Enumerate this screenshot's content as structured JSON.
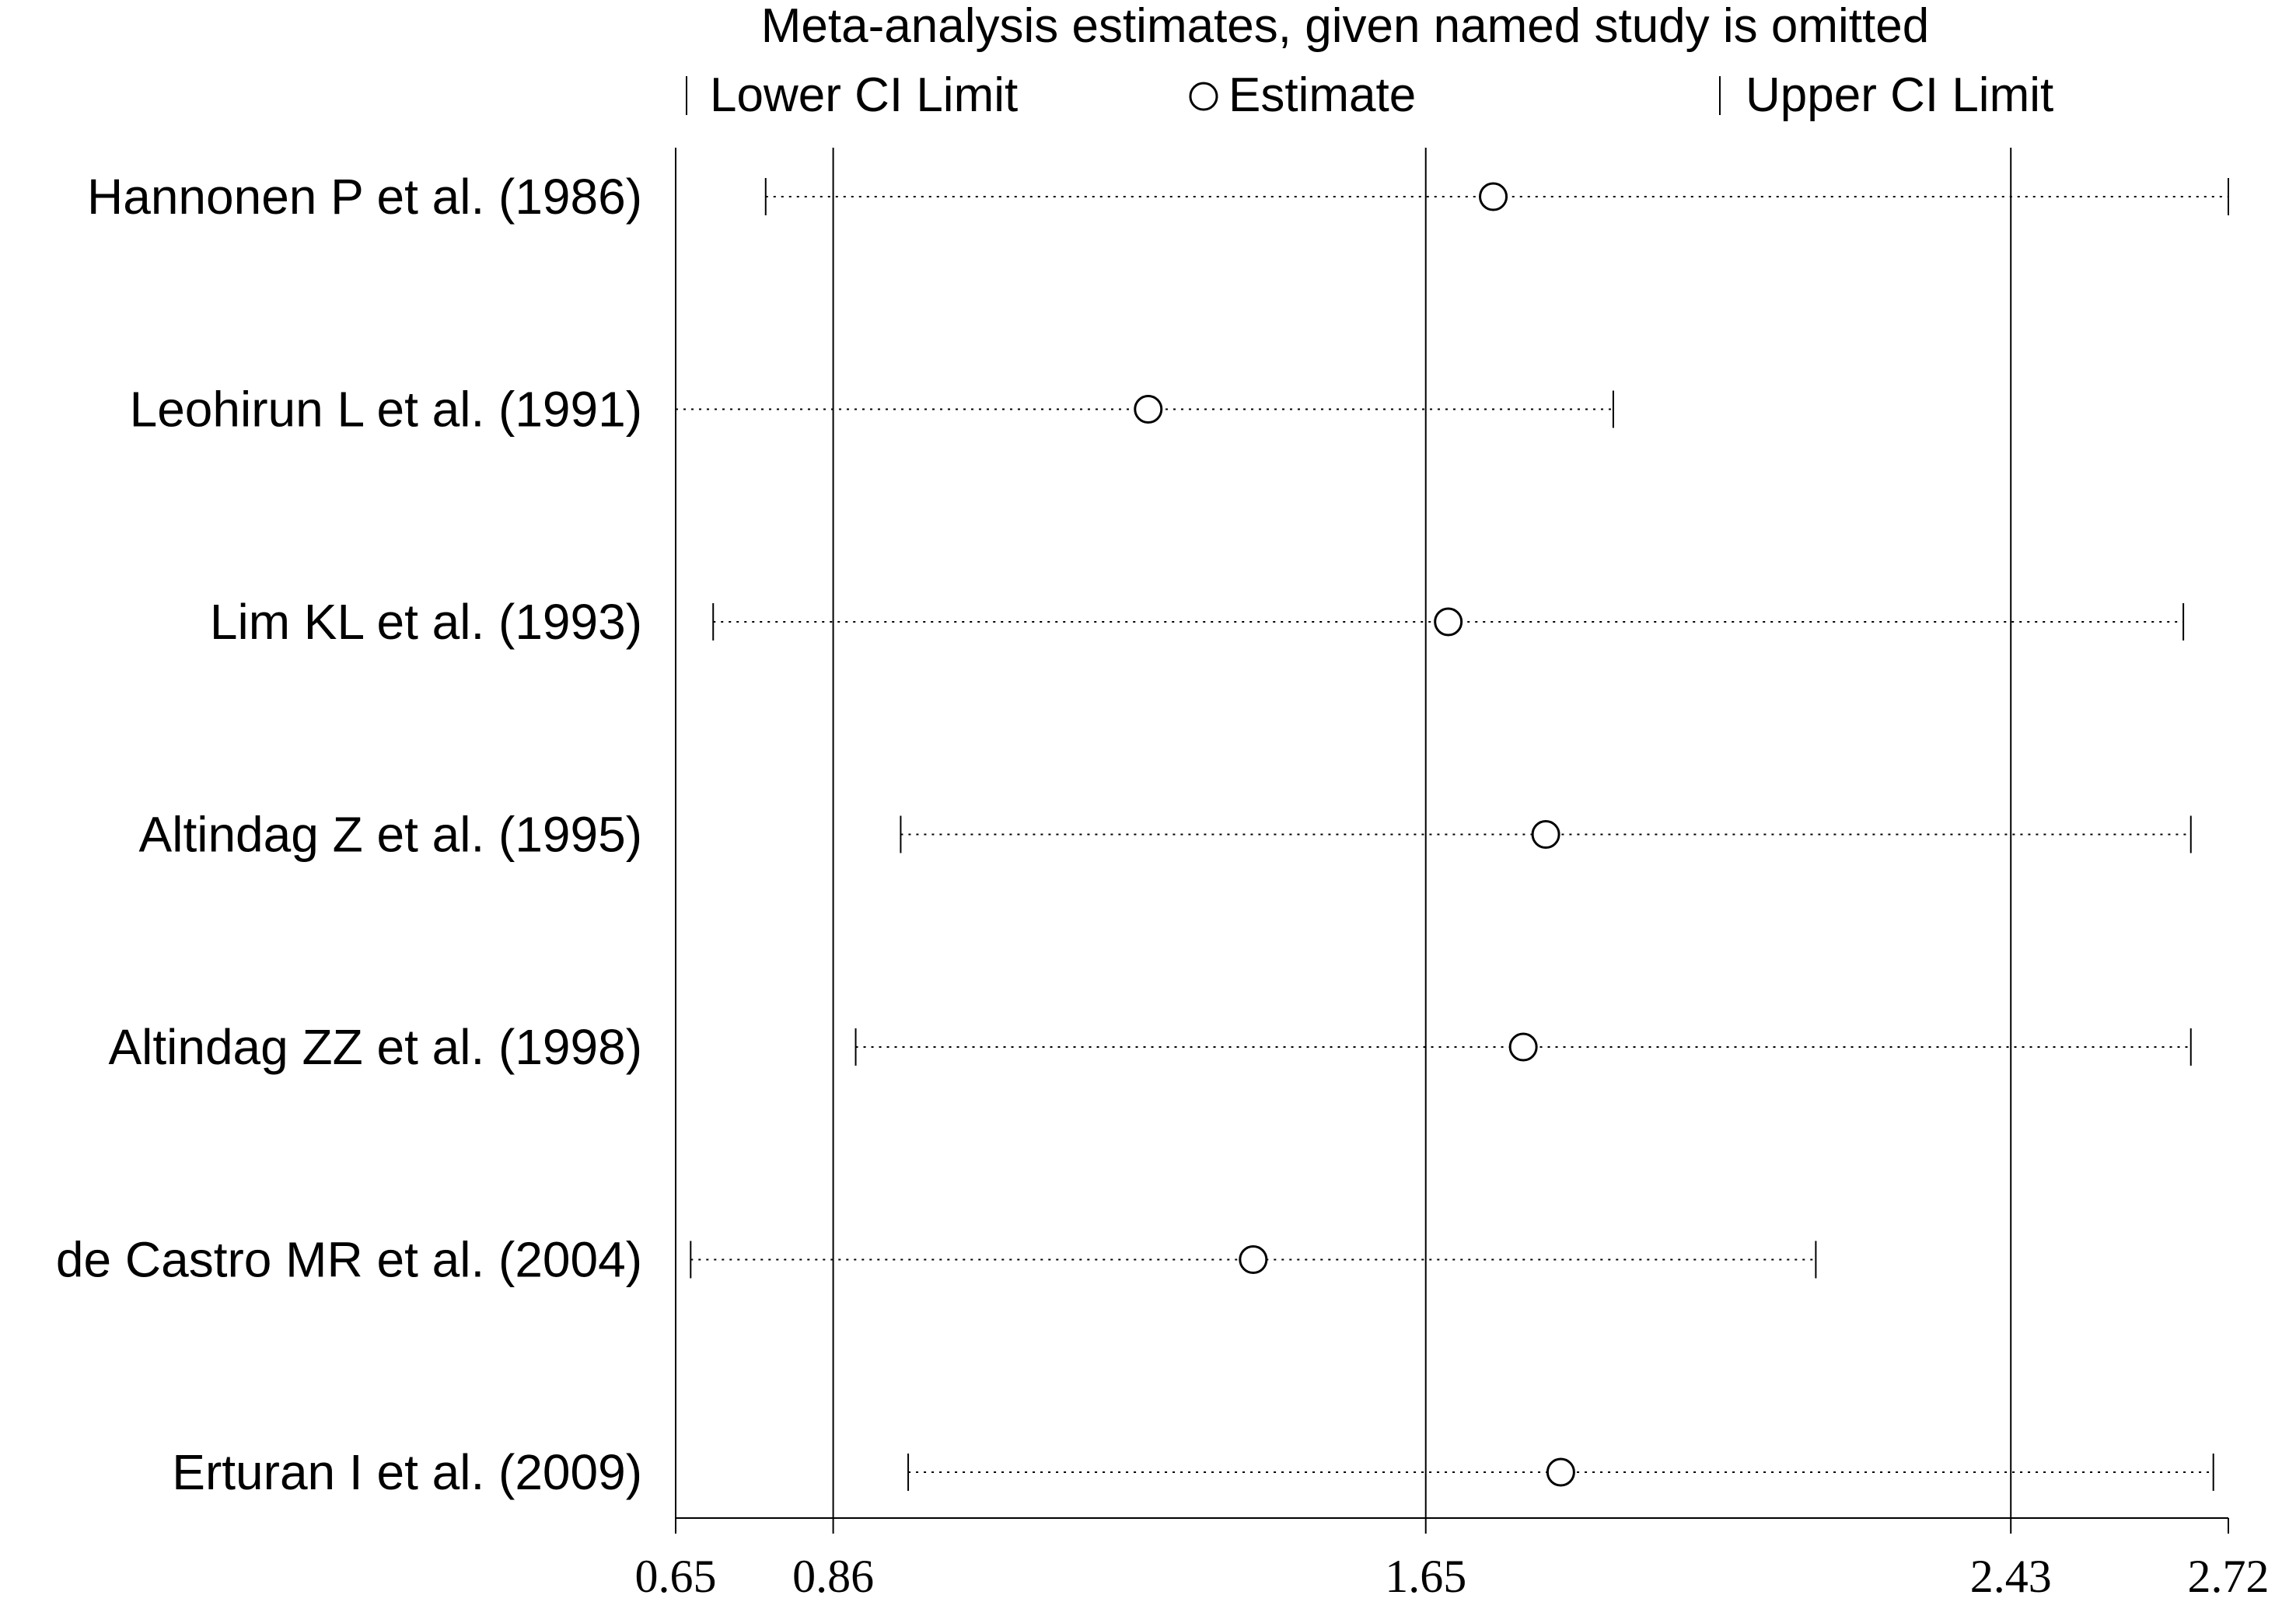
{
  "chart_data": {
    "type": "sensitivity-forest",
    "title": "Meta-analysis estimates, given named study is omitted",
    "legend": {
      "lower": "Lower CI Limit",
      "estimate": "Estimate",
      "upper": "Upper CI Limit"
    },
    "x_ticks": [
      0.65,
      0.86,
      1.65,
      2.43,
      2.72
    ],
    "x_tick_labels": [
      "0.65",
      "0.86",
      "1.65",
      "2.43",
      "2.72"
    ],
    "xlim": [
      0.65,
      2.72
    ],
    "reference_lines": [
      0.86,
      1.65,
      2.43
    ],
    "studies": [
      {
        "label": "Hannonen P et al. (1986)",
        "lower": 0.77,
        "estimate": 1.74,
        "upper": 2.72
      },
      {
        "label": "Leohirun L et al. (1991)",
        "lower": 0.65,
        "estimate": 1.28,
        "upper": 1.9
      },
      {
        "label": "Lim KL et al. (1993)",
        "lower": 0.7,
        "estimate": 1.68,
        "upper": 2.66
      },
      {
        "label": "Altindag Z et al. (1995)",
        "lower": 0.95,
        "estimate": 1.81,
        "upper": 2.67
      },
      {
        "label": "Altindag ZZ et al. (1998)",
        "lower": 0.89,
        "estimate": 1.78,
        "upper": 2.67
      },
      {
        "label": "de Castro MR et al. (2004)",
        "lower": 0.67,
        "estimate": 1.42,
        "upper": 2.17
      },
      {
        "label": "Erturan I et al. (2009)",
        "lower": 0.96,
        "estimate": 1.83,
        "upper": 2.7
      }
    ]
  }
}
